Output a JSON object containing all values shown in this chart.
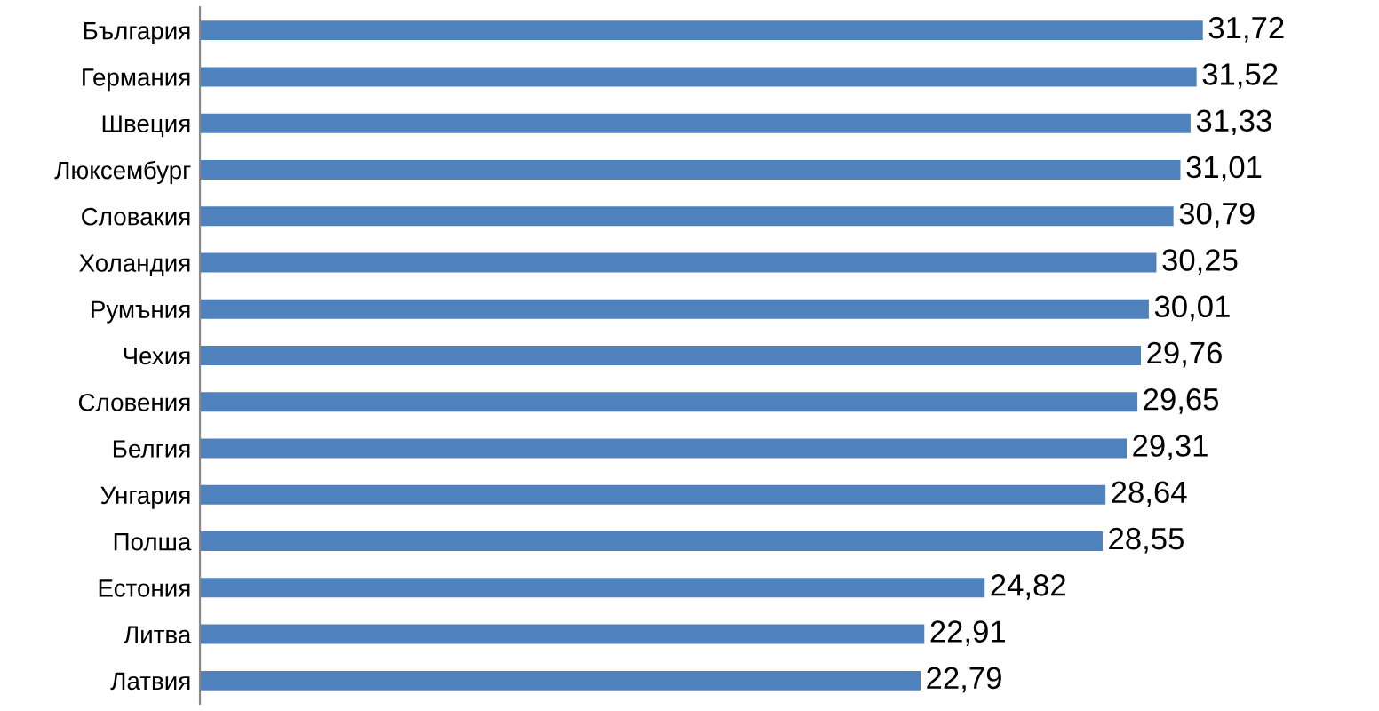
{
  "chart_data": {
    "type": "bar",
    "orientation": "horizontal",
    "categories": [
      "България",
      "Германия",
      "Швеция",
      "Люксембург",
      "Словакия",
      "Холандия",
      "Румъния",
      "Чехия",
      "Словения",
      "Белгия",
      "Унгария",
      "Полша",
      "Естония",
      "Литва",
      "Латвия"
    ],
    "values": [
      31.72,
      31.52,
      31.33,
      31.01,
      30.79,
      30.25,
      30.01,
      29.76,
      29.65,
      29.31,
      28.64,
      28.55,
      24.82,
      22.91,
      22.79
    ],
    "value_labels": [
      "31,72",
      "31,52",
      "31,33",
      "31,01",
      "30,79",
      "30,25",
      "30,01",
      "29,76",
      "29,65",
      "29,31",
      "28,64",
      "28,55",
      "24,82",
      "22,91",
      "22,79"
    ],
    "color": "#4f81bd",
    "grid": false,
    "legend": false,
    "tick_labels": "y"
  }
}
